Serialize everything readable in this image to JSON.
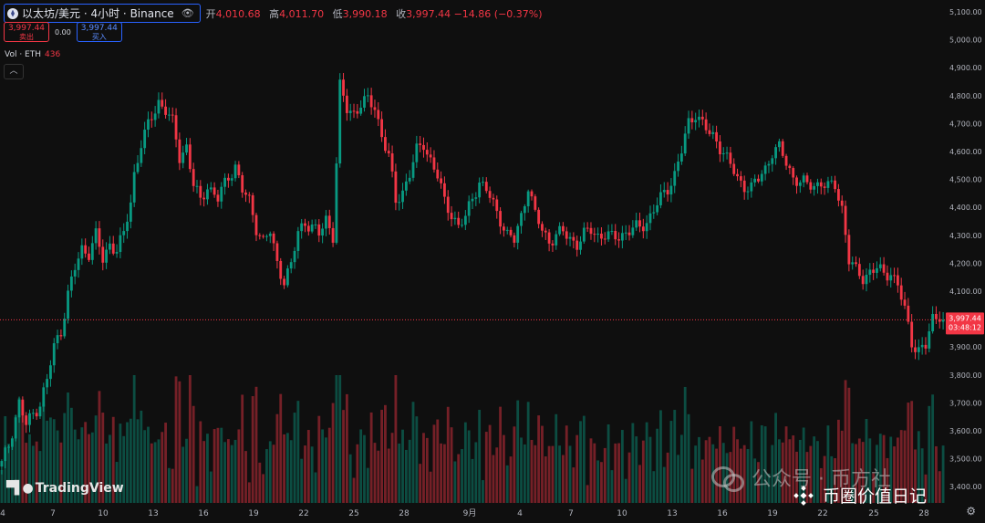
{
  "legend": {
    "symbol": "以太坊/美元 · 4小时 · Binance",
    "ohlc": [
      {
        "label": "开",
        "value": "4,010.68"
      },
      {
        "label": "高",
        "value": "4,011.70"
      },
      {
        "label": "低",
        "value": "3,990.18"
      },
      {
        "label": "收",
        "value": "3,997.44 −14.86 (−0.37%)"
      }
    ]
  },
  "trade": {
    "sell_price": "3,997.44",
    "sell_label": "卖出",
    "spread": "0.00",
    "buy_price": "3,997.44",
    "buy_label": "买入"
  },
  "volume": {
    "label": "Vol · ETH",
    "value": "436"
  },
  "collapse_icon": "chevron-up-icon",
  "price_badge": {
    "price": "3,997.44",
    "countdown": "03:48:12"
  },
  "branding": {
    "tradingview": "TradingView"
  },
  "watermarks": {
    "wechat": "公众号 · 币方社",
    "binance": "币圈价值日记"
  },
  "colors": {
    "up": "#089981",
    "down": "#f23645",
    "background": "#0f0f0f",
    "price_line": "#f23645"
  },
  "chart_data": {
    "type": "candlestick",
    "title": "以太坊/美元 · 4小时 · Binance",
    "y_axis": {
      "ticks": [
        "5,100.00",
        "5,000.00",
        "4,900.00",
        "4,800.00",
        "4,700.00",
        "4,600.00",
        "4,500.00",
        "4,400.00",
        "4,300.00",
        "4,200.00",
        "4,100.00",
        "3,900.00",
        "3,800.00",
        "3,700.00",
        "3,600.00",
        "3,500.00",
        "3,400.00"
      ],
      "range": [
        3380,
        5110
      ]
    },
    "x_axis": {
      "ticks": [
        "4",
        "7",
        "10",
        "13",
        "16",
        "19",
        "22",
        "25",
        "28",
        "9月",
        "4",
        "7",
        "10",
        "13",
        "16",
        "19",
        "22",
        "25",
        "28"
      ]
    },
    "close_path": [
      [
        0,
        3480
      ],
      [
        2,
        3550
      ],
      [
        5,
        3700
      ],
      [
        7,
        3620
      ],
      [
        9,
        3660
      ],
      [
        11,
        3700
      ],
      [
        13,
        3780
      ],
      [
        15,
        3900
      ],
      [
        17,
        3960
      ],
      [
        19,
        4090
      ],
      [
        21,
        4180
      ],
      [
        23,
        4250
      ],
      [
        25,
        4240
      ],
      [
        27,
        4300
      ],
      [
        29,
        4210
      ],
      [
        31,
        4270
      ],
      [
        33,
        4250
      ],
      [
        35,
        4300
      ],
      [
        37,
        4420
      ],
      [
        38,
        4520
      ],
      [
        40,
        4630
      ],
      [
        43,
        4720
      ],
      [
        45,
        4780
      ],
      [
        47,
        4750
      ],
      [
        49,
        4700
      ],
      [
        51,
        4580
      ],
      [
        53,
        4620
      ],
      [
        55,
        4480
      ],
      [
        57,
        4420
      ],
      [
        59,
        4480
      ],
      [
        62,
        4430
      ],
      [
        65,
        4510
      ],
      [
        67,
        4550
      ],
      [
        69,
        4460
      ],
      [
        71,
        4420
      ],
      [
        73,
        4330
      ],
      [
        75,
        4280
      ],
      [
        77,
        4310
      ],
      [
        79,
        4200
      ],
      [
        81,
        4140
      ],
      [
        83,
        4190
      ],
      [
        85,
        4310
      ],
      [
        87,
        4350
      ],
      [
        89,
        4330
      ],
      [
        91,
        4300
      ],
      [
        93,
        4360
      ],
      [
        95,
        4300
      ],
      [
        96,
        4560
      ],
      [
        97,
        4830
      ],
      [
        99,
        4750
      ],
      [
        101,
        4740
      ],
      [
        103,
        4770
      ],
      [
        105,
        4780
      ],
      [
        107,
        4760
      ],
      [
        109,
        4660
      ],
      [
        111,
        4580
      ],
      [
        113,
        4420
      ],
      [
        115,
        4460
      ],
      [
        117,
        4520
      ],
      [
        119,
        4600
      ],
      [
        121,
        4630
      ],
      [
        123,
        4570
      ],
      [
        125,
        4510
      ],
      [
        127,
        4420
      ],
      [
        129,
        4380
      ],
      [
        131,
        4330
      ],
      [
        133,
        4360
      ],
      [
        135,
        4440
      ],
      [
        137,
        4490
      ],
      [
        139,
        4460
      ],
      [
        141,
        4410
      ],
      [
        143,
        4360
      ],
      [
        145,
        4300
      ],
      [
        147,
        4280
      ],
      [
        149,
        4370
      ],
      [
        151,
        4480
      ],
      [
        153,
        4370
      ],
      [
        155,
        4320
      ],
      [
        157,
        4280
      ],
      [
        159,
        4300
      ],
      [
        161,
        4310
      ],
      [
        163,
        4290
      ],
      [
        165,
        4270
      ],
      [
        167,
        4300
      ],
      [
        169,
        4320
      ],
      [
        171,
        4300
      ],
      [
        173,
        4300
      ],
      [
        175,
        4290
      ],
      [
        177,
        4300
      ],
      [
        179,
        4310
      ],
      [
        181,
        4320
      ],
      [
        183,
        4330
      ],
      [
        185,
        4350
      ],
      [
        187,
        4390
      ],
      [
        189,
        4430
      ],
      [
        191,
        4470
      ],
      [
        193,
        4520
      ],
      [
        195,
        4600
      ],
      [
        197,
        4700
      ],
      [
        199,
        4740
      ],
      [
        201,
        4700
      ],
      [
        203,
        4660
      ],
      [
        205,
        4640
      ],
      [
        207,
        4600
      ],
      [
        209,
        4550
      ],
      [
        211,
        4500
      ],
      [
        213,
        4480
      ],
      [
        215,
        4470
      ],
      [
        217,
        4500
      ],
      [
        219,
        4540
      ],
      [
        221,
        4600
      ],
      [
        223,
        4610
      ],
      [
        225,
        4560
      ],
      [
        227,
        4510
      ],
      [
        229,
        4490
      ],
      [
        231,
        4480
      ],
      [
        233,
        4480
      ],
      [
        235,
        4490
      ],
      [
        237,
        4470
      ],
      [
        239,
        4480
      ],
      [
        241,
        4400
      ],
      [
        243,
        4210
      ],
      [
        245,
        4170
      ],
      [
        247,
        4150
      ],
      [
        249,
        4170
      ],
      [
        251,
        4180
      ],
      [
        253,
        4160
      ],
      [
        255,
        4170
      ],
      [
        257,
        4120
      ],
      [
        259,
        4030
      ],
      [
        261,
        3920
      ],
      [
        263,
        3890
      ],
      [
        265,
        3900
      ],
      [
        267,
        4000
      ],
      [
        269,
        4020
      ],
      [
        270,
        3997
      ]
    ]
  }
}
